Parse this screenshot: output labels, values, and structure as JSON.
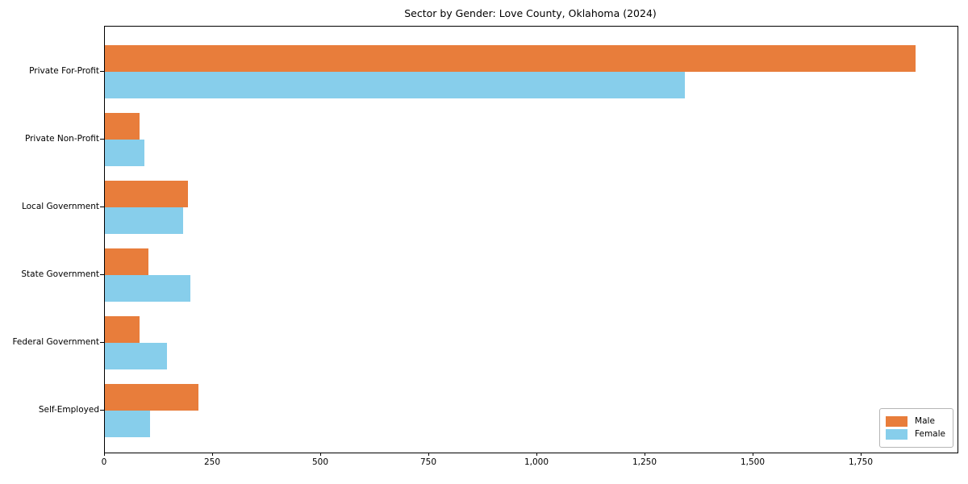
{
  "figure_title": "Sector by Gender: Love County, Oklahoma (2024)",
  "chart_data": {
    "type": "bar",
    "orientation": "horizontal",
    "title": "Sector by Gender: Love County, Oklahoma (2024)",
    "categories": [
      "Private For-Profit",
      "Private Non-Profit",
      "Local Government",
      "State Government",
      "Federal Government",
      "Self-Employed"
    ],
    "series": [
      {
        "name": "Male",
        "color": "#e87d3b",
        "values": [
          1875,
          80,
          192,
          100,
          80,
          216
        ]
      },
      {
        "name": "Female",
        "color": "#87ceeb",
        "values": [
          1341,
          92,
          181,
          198,
          144,
          104
        ]
      }
    ],
    "xlabel": "",
    "ylabel": "",
    "xlim": [
      0,
      1972
    ],
    "xticks": [
      0,
      250,
      500,
      750,
      1000,
      1250,
      1500,
      1750
    ],
    "xtick_labels": [
      "0",
      "250",
      "500",
      "750",
      "1,000",
      "1,250",
      "1,500",
      "1,750"
    ],
    "legend": {
      "position": "lower right",
      "entries": [
        "Male",
        "Female"
      ]
    },
    "grid": false,
    "background_color": "#ffffff",
    "spine_color": "#000000"
  }
}
